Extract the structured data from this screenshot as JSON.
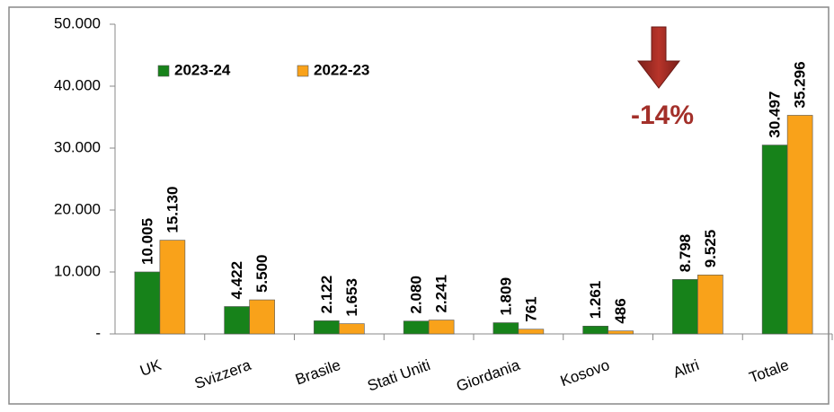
{
  "chart_data": {
    "type": "bar",
    "categories": [
      "UK",
      "Svizzera",
      "Brasile",
      "Stati Uniti",
      "Giordania",
      "Kosovo",
      "Altri",
      "Totale"
    ],
    "series": [
      {
        "name": "2023-24",
        "color": "#17821a",
        "values": [
          10005,
          4422,
          2122,
          2080,
          1809,
          1261,
          8798,
          30497
        ],
        "value_labels": [
          "10.005",
          "4.422",
          "2.122",
          "2.080",
          "1.809",
          "1.261",
          "8.798",
          "30.497"
        ]
      },
      {
        "name": "2022-23",
        "color": "#f9a21a",
        "values": [
          15130,
          5500,
          1653,
          2241,
          761,
          486,
          9525,
          35296
        ],
        "value_labels": [
          "15.130",
          "5.500",
          "1.653",
          "2.241",
          "761",
          "486",
          "9.525",
          "35.296"
        ]
      }
    ],
    "ylim": [
      0,
      50000
    ],
    "yticks": [
      {
        "value": 0,
        "label": "-"
      },
      {
        "value": 10000,
        "label": "10.000"
      },
      {
        "value": 20000,
        "label": "20.000"
      },
      {
        "value": 30000,
        "label": "30.000"
      },
      {
        "value": 40000,
        "label": "40.000"
      },
      {
        "value": 50000,
        "label": "50.000"
      }
    ],
    "annotation": "-14%",
    "legend": "top-left"
  }
}
